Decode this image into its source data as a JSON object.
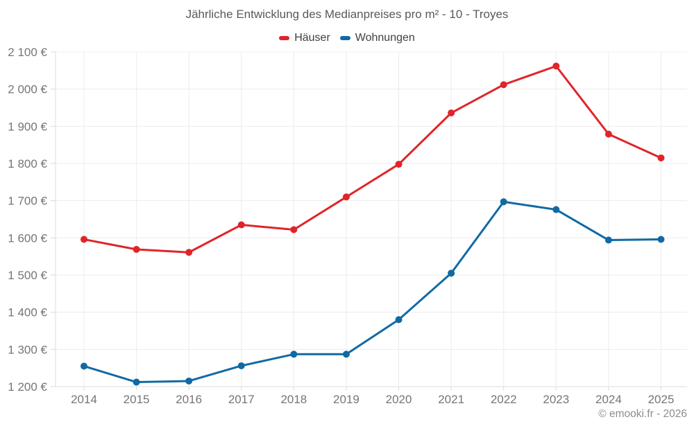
{
  "title": "Jährliche Entwicklung des Medianpreises pro m² - 10 - Troyes",
  "footer": {
    "text": "© emooki.fr - 2026"
  },
  "colors": {
    "background": "#ffffff",
    "gridline": "#ececec",
    "axis_line": "#dcdcdc",
    "tick": "#d9d9d9",
    "axis_label": "#757575",
    "title_text": "#58595b",
    "legend_text": "#3f3f3f",
    "footer_text": "#8c8c8c",
    "hauser_red": "#e0242a",
    "wohnungen_blue": "#1169a4"
  },
  "chart_data": {
    "type": "line",
    "title": "Jährliche Entwicklung des Medianpreises pro m² - 10 - Troyes",
    "xlabel": "",
    "ylabel": "",
    "x": [
      2014,
      2015,
      2016,
      2017,
      2018,
      2019,
      2020,
      2021,
      2022,
      2023,
      2024,
      2025
    ],
    "xtick_labels": [
      "2014",
      "2015",
      "2016",
      "2017",
      "2018",
      "2019",
      "2020",
      "2021",
      "2022",
      "2023",
      "2024",
      "2025"
    ],
    "ylim": [
      1200,
      2100
    ],
    "yticks": [
      1200,
      1300,
      1400,
      1500,
      1600,
      1700,
      1800,
      1900,
      2000,
      2100
    ],
    "ytick_labels": [
      "1 200 €",
      "1 300 €",
      "1 400 €",
      "1 500 €",
      "1 600 €",
      "1 700 €",
      "1 800 €",
      "1 900 €",
      "2 000 €",
      "2 100 €"
    ],
    "grid": true,
    "legend_position": "top",
    "series": [
      {
        "name": "Häuser",
        "color": "#e0242a",
        "values": [
          1596,
          1569,
          1561,
          1635,
          1622,
          1710,
          1798,
          1936,
          2012,
          2062,
          1879,
          1815
        ]
      },
      {
        "name": "Wohnungen",
        "color": "#1169a4",
        "values": [
          1255,
          1212,
          1215,
          1256,
          1287,
          1287,
          1380,
          1505,
          1697,
          1676,
          1594,
          1596
        ]
      }
    ]
  }
}
